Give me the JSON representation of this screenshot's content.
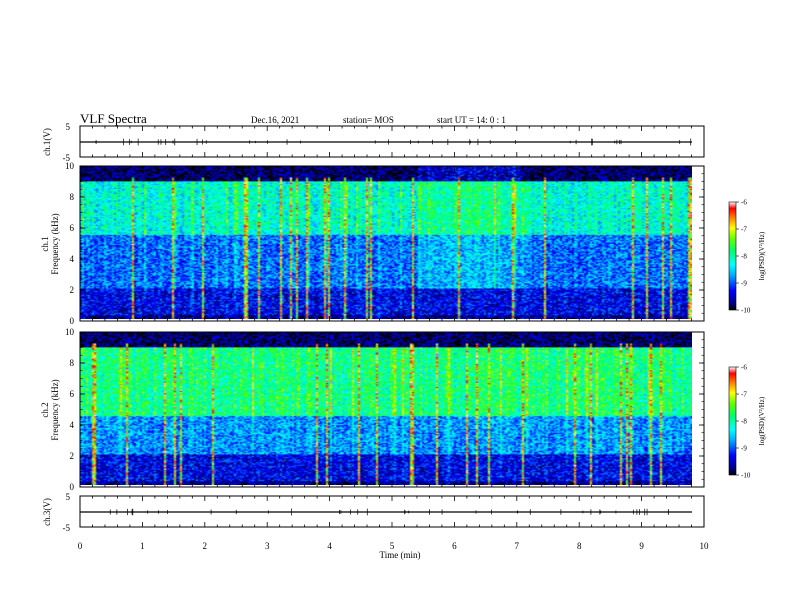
{
  "header": {
    "title": "VLF Spectra",
    "date": "Dec.16, 2021",
    "station": "station= MOS",
    "start": "start  UT =   14: 0  : 1"
  },
  "chart_data": [
    {
      "type": "line",
      "name": "ch1-waveform",
      "ylabel": "ch.1(V)",
      "ylim": [
        -5,
        5
      ],
      "yticks": [
        "5",
        "-5"
      ],
      "xlim": [
        0,
        10
      ],
      "level": 0
    },
    {
      "type": "heatmap",
      "name": "ch1-spectrogram",
      "ylabel_line1": "ch.1",
      "ylabel_line2": "Frequency  (kHz)",
      "ylim": [
        0,
        10
      ],
      "yticks": [
        "0",
        "2",
        "4",
        "6",
        "8",
        "10"
      ],
      "xlim": [
        0,
        10
      ],
      "data_xmax": 9.8,
      "colorbar": {
        "label": "log(PSD)(V²/Hz)",
        "range": [
          -10,
          -6
        ],
        "ticks": [
          "-6",
          "-7",
          "-8",
          "-9",
          "-10"
        ]
      }
    },
    {
      "type": "heatmap",
      "name": "ch2-spectrogram",
      "ylabel_line1": "ch.2",
      "ylabel_line2": "Frequency  (kHz)",
      "ylim": [
        0,
        10
      ],
      "yticks": [
        "0",
        "2",
        "4",
        "6",
        "8",
        "10"
      ],
      "xlim": [
        0,
        10
      ],
      "data_xmax": 9.8,
      "colorbar": {
        "label": "log(PSD)(V²/Hz)",
        "range": [
          -10,
          -6
        ],
        "ticks": [
          "-6",
          "-7",
          "-8",
          "-9",
          "-10"
        ]
      }
    },
    {
      "type": "line",
      "name": "ch3-waveform",
      "ylabel": "ch.3(V)",
      "ylim": [
        -5,
        5
      ],
      "yticks": [
        "5",
        "-5"
      ],
      "xlim": [
        0,
        10
      ],
      "level": 0,
      "xlabel": "Time  (min)",
      "xticks": [
        "0",
        "1",
        "2",
        "3",
        "4",
        "5",
        "6",
        "7",
        "8",
        "9",
        "10"
      ]
    }
  ]
}
